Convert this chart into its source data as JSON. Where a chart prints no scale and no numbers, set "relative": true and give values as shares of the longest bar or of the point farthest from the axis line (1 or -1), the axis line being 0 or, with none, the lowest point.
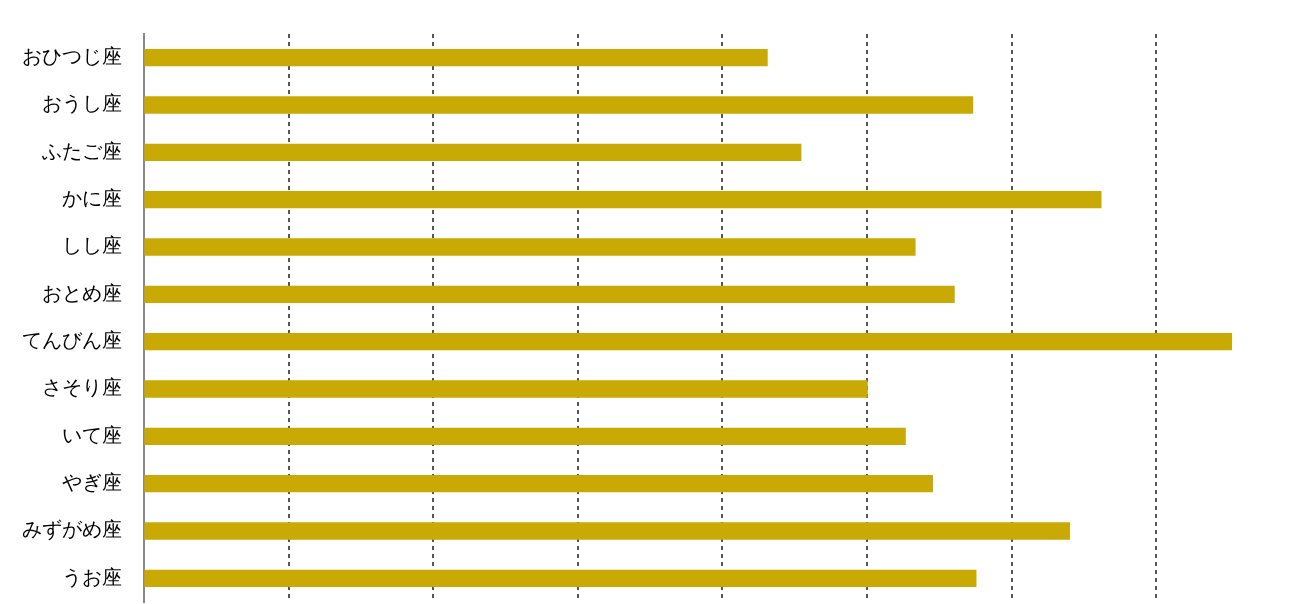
{
  "chart_data": {
    "type": "bar",
    "orientation": "horizontal",
    "relative": true,
    "grid": "x",
    "categories": [
      "おひつじ座",
      "おうし座",
      "ふたご座",
      "かに座",
      "しし座",
      "おとめ座",
      "てんびん座",
      "さそり座",
      "いて座",
      "やぎ座",
      "みずがめ座",
      "うお座"
    ],
    "values": [
      0.573,
      0.762,
      0.604,
      0.88,
      0.709,
      0.745,
      1,
      0.665,
      0.7,
      0.725,
      0.851,
      0.765
    ],
    "color": "#c9a904"
  }
}
